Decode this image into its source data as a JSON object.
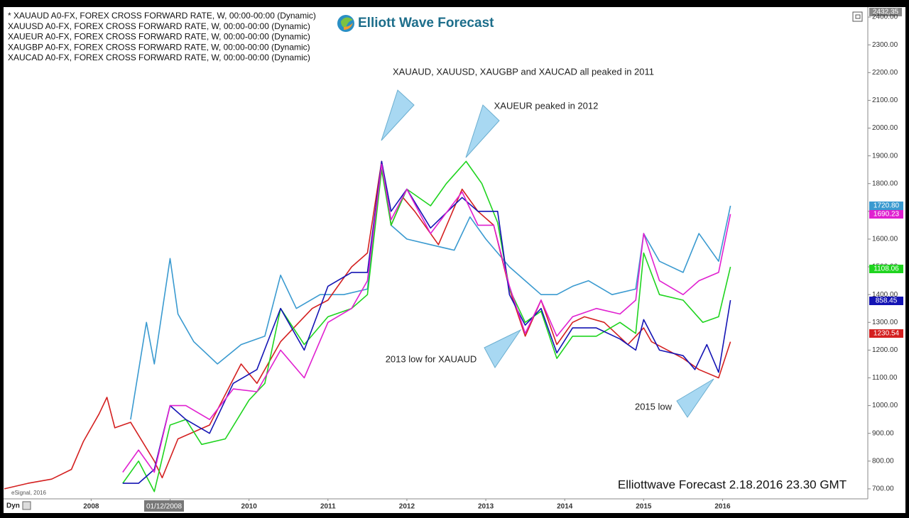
{
  "chart_data": {
    "type": "line",
    "logo": "Elliott Wave Forecast",
    "watermark": "Elliottwave Forecast 2.18.2016 23.30 GMT",
    "source": "eSignal, 2016",
    "interval_button": "Dyn",
    "cursor_date": "01/12/2008",
    "axis_top_label": "2432.35",
    "annotations": [
      "XAUAUD, XAUUSD, XAUGBP and XAUCAD all peaked in 2011",
      "XAUEUR peaked in 2012",
      "2013 low for XAUAUD",
      "2015 low"
    ],
    "xlim": [
      2006.89,
      2017.84
    ],
    "xticks": [
      2008,
      2009,
      2010,
      2011,
      2012,
      2013,
      2014,
      2015,
      2016
    ],
    "ylim": [
      664,
      2436
    ],
    "yticks": [
      {
        "value": 700,
        "label": "700.00"
      },
      {
        "value": 800,
        "label": "800.00"
      },
      {
        "value": 900,
        "label": "900.00"
      },
      {
        "value": 1000,
        "label": "1000.00"
      },
      {
        "value": 1100,
        "label": "1100.00"
      },
      {
        "value": 1200,
        "label": "1200.00"
      },
      {
        "value": 1300,
        "label": "1300.00"
      },
      {
        "value": 1400,
        "label": "1400.00"
      },
      {
        "value": 1500,
        "label": "1500.00"
      },
      {
        "value": 1600,
        "label": "1600.00"
      },
      {
        "value": 1700,
        "label": "1700.00"
      },
      {
        "value": 1800,
        "label": "1800.00"
      },
      {
        "value": 1900,
        "label": "1900.00"
      },
      {
        "value": 2000,
        "label": "2000.00"
      },
      {
        "value": 2100,
        "label": "2100.00"
      },
      {
        "value": 2200,
        "label": "2200.00"
      },
      {
        "value": 2300,
        "label": "2300.00"
      },
      {
        "value": 2400,
        "label": "2400.00"
      }
    ],
    "series": [
      {
        "name": "* XAUAUD A0-FX, FOREX CROSS FORWARD RATE, W, 00:00-00:00 (Dynamic)",
        "color": "#3a9ad0",
        "price_label": "1720.80",
        "x": [
          2008.5,
          2008.7,
          2008.8,
          2009.0,
          2009.1,
          2009.3,
          2009.6,
          2009.9,
          2010.2,
          2010.4,
          2010.6,
          2010.9,
          2011.2,
          2011.5,
          2011.68,
          2011.8,
          2012.0,
          2012.3,
          2012.6,
          2012.8,
          2013.0,
          2013.3,
          2013.5,
          2013.7,
          2013.9,
          2014.1,
          2014.3,
          2014.6,
          2014.9,
          2015.0,
          2015.2,
          2015.5,
          2015.7,
          2015.95,
          2016.1
        ],
        "values": [
          950,
          1300,
          1150,
          1530,
          1330,
          1230,
          1150,
          1220,
          1250,
          1470,
          1350,
          1400,
          1400,
          1420,
          1880,
          1650,
          1600,
          1580,
          1560,
          1680,
          1600,
          1500,
          1450,
          1400,
          1400,
          1430,
          1450,
          1400,
          1420,
          1620,
          1520,
          1480,
          1620,
          1520,
          1720
        ]
      },
      {
        "name": "XAUUSD A0-FX, FOREX CROSS FORWARD RATE, W, 00:00-00:00 (Dynamic)",
        "color": "#d42020",
        "price_label": "1230.54",
        "x": [
          2006.9,
          2007.2,
          2007.5,
          2007.75,
          2007.9,
          2008.1,
          2008.2,
          2008.3,
          2008.5,
          2008.8,
          2008.9,
          2009.1,
          2009.5,
          2009.9,
          2010.1,
          2010.4,
          2010.8,
          2011.0,
          2011.3,
          2011.5,
          2011.68,
          2011.8,
          2011.95,
          2012.1,
          2012.4,
          2012.7,
          2012.9,
          2013.1,
          2013.3,
          2013.5,
          2013.7,
          2013.9,
          2014.1,
          2014.25,
          2014.5,
          2014.8,
          2015.0,
          2015.1,
          2015.5,
          2015.7,
          2015.95,
          2016.1
        ],
        "values": [
          700,
          720,
          735,
          770,
          870,
          970,
          1030,
          920,
          940,
          800,
          740,
          880,
          930,
          1150,
          1080,
          1230,
          1350,
          1380,
          1500,
          1550,
          1880,
          1650,
          1750,
          1700,
          1580,
          1780,
          1700,
          1650,
          1420,
          1250,
          1380,
          1220,
          1300,
          1320,
          1300,
          1220,
          1280,
          1230,
          1170,
          1130,
          1100,
          1230
        ]
      },
      {
        "name": "XAUEUR A0-FX, FOREX CROSS FORWARD RATE, W, 00:00-00:00 (Dynamic)",
        "color": "#1fd41f",
        "price_label": "1108.06",
        "x": [
          2008.4,
          2008.6,
          2008.8,
          2009.0,
          2009.2,
          2009.4,
          2009.7,
          2010.0,
          2010.2,
          2010.4,
          2010.7,
          2011.0,
          2011.3,
          2011.5,
          2011.68,
          2011.8,
          2012.0,
          2012.3,
          2012.5,
          2012.75,
          2012.95,
          2013.15,
          2013.3,
          2013.5,
          2013.7,
          2013.9,
          2014.1,
          2014.4,
          2014.7,
          2014.9,
          2015.0,
          2015.2,
          2015.5,
          2015.75,
          2015.95,
          2016.1
        ],
        "values": [
          720,
          800,
          690,
          930,
          950,
          860,
          880,
          1020,
          1080,
          1350,
          1220,
          1320,
          1350,
          1400,
          1850,
          1650,
          1780,
          1720,
          1800,
          1880,
          1800,
          1660,
          1420,
          1300,
          1340,
          1170,
          1250,
          1250,
          1300,
          1260,
          1550,
          1400,
          1380,
          1300,
          1320,
          1500
        ]
      },
      {
        "name": "XAUGBP A0-FX, FOREX CROSS FORWARD RATE, W, 00:00-00:00 (Dynamic)",
        "color": "#1414b4",
        "price_label": "858.45",
        "x": [
          2008.4,
          2008.6,
          2008.8,
          2009.0,
          2009.2,
          2009.5,
          2009.8,
          2010.1,
          2010.4,
          2010.7,
          2011.0,
          2011.3,
          2011.5,
          2011.68,
          2011.8,
          2012.0,
          2012.3,
          2012.7,
          2012.9,
          2013.15,
          2013.3,
          2013.5,
          2013.7,
          2013.9,
          2014.1,
          2014.4,
          2014.7,
          2014.9,
          2015.0,
          2015.2,
          2015.5,
          2015.65,
          2015.8,
          2015.95,
          2016.1
        ],
        "values": [
          720,
          720,
          770,
          1000,
          950,
          900,
          1080,
          1130,
          1350,
          1200,
          1430,
          1480,
          1480,
          1880,
          1700,
          1780,
          1640,
          1750,
          1700,
          1700,
          1400,
          1290,
          1350,
          1190,
          1280,
          1280,
          1240,
          1200,
          1310,
          1200,
          1180,
          1130,
          1220,
          1120,
          1380
        ]
      },
      {
        "name": "XAUCAD A0-FX, FOREX CROSS FORWARD RATE, W, 00:00-00:00 (Dynamic)",
        "color": "#e020d0",
        "price_label": "1690.23",
        "x": [
          2008.4,
          2008.6,
          2008.8,
          2009.0,
          2009.2,
          2009.5,
          2009.8,
          2010.1,
          2010.4,
          2010.7,
          2011.0,
          2011.3,
          2011.5,
          2011.68,
          2011.8,
          2012.0,
          2012.3,
          2012.7,
          2012.9,
          2013.1,
          2013.3,
          2013.5,
          2013.7,
          2013.9,
          2014.1,
          2014.4,
          2014.7,
          2014.9,
          2015.0,
          2015.2,
          2015.5,
          2015.7,
          2015.95,
          2016.1
        ],
        "values": [
          760,
          840,
          760,
          1000,
          1000,
          950,
          1060,
          1050,
          1200,
          1100,
          1300,
          1350,
          1450,
          1870,
          1670,
          1780,
          1620,
          1770,
          1650,
          1650,
          1430,
          1260,
          1380,
          1250,
          1320,
          1350,
          1330,
          1380,
          1620,
          1450,
          1400,
          1450,
          1480,
          1690
        ]
      }
    ]
  }
}
